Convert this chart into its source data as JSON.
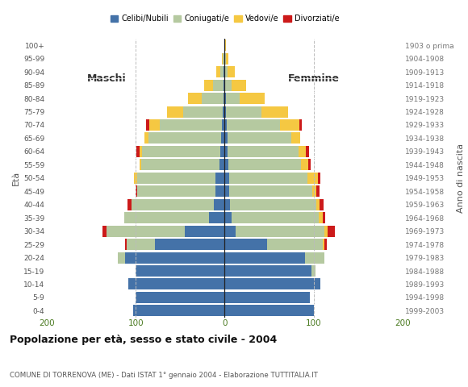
{
  "age_groups": [
    "0-4",
    "5-9",
    "10-14",
    "15-19",
    "20-24",
    "25-29",
    "30-34",
    "35-39",
    "40-44",
    "45-49",
    "50-54",
    "55-59",
    "60-64",
    "65-69",
    "70-74",
    "75-79",
    "80-84",
    "85-89",
    "90-94",
    "95-99",
    "100+"
  ],
  "birth_years": [
    "1999-2003",
    "1994-1998",
    "1989-1993",
    "1984-1988",
    "1979-1983",
    "1974-1978",
    "1969-1973",
    "1964-1968",
    "1959-1963",
    "1954-1958",
    "1949-1953",
    "1944-1948",
    "1939-1943",
    "1934-1938",
    "1929-1933",
    "1924-1928",
    "1919-1923",
    "1914-1918",
    "1909-1913",
    "1904-1908",
    "1903 o prima"
  ],
  "colors": {
    "celibi": "#4472a8",
    "coniugati": "#b5c9a0",
    "vedovi": "#f5c842",
    "divorziati": "#cc1a1a"
  },
  "maschi": {
    "celibi": [
      103,
      100,
      108,
      100,
      112,
      78,
      45,
      18,
      12,
      10,
      10,
      6,
      5,
      4,
      3,
      2,
      1,
      1,
      1,
      0,
      0
    ],
    "coniugati": [
      0,
      0,
      0,
      0,
      8,
      32,
      88,
      95,
      93,
      88,
      88,
      88,
      88,
      82,
      70,
      45,
      25,
      12,
      4,
      2,
      0
    ],
    "vedovi": [
      0,
      0,
      0,
      0,
      0,
      0,
      0,
      0,
      0,
      0,
      4,
      2,
      3,
      4,
      12,
      18,
      15,
      10,
      4,
      1,
      0
    ],
    "divorziati": [
      0,
      0,
      0,
      0,
      0,
      2,
      4,
      0,
      4,
      2,
      0,
      0,
      3,
      0,
      3,
      0,
      0,
      0,
      0,
      0,
      0
    ]
  },
  "femmine": {
    "nubili": [
      100,
      96,
      108,
      98,
      90,
      48,
      12,
      8,
      6,
      5,
      5,
      4,
      3,
      3,
      2,
      1,
      1,
      0,
      0,
      0,
      0
    ],
    "coniugate": [
      0,
      0,
      0,
      4,
      22,
      62,
      100,
      98,
      97,
      94,
      88,
      82,
      80,
      72,
      60,
      40,
      16,
      8,
      3,
      1,
      0
    ],
    "vedove": [
      0,
      0,
      0,
      0,
      0,
      2,
      4,
      4,
      4,
      4,
      12,
      8,
      8,
      10,
      22,
      30,
      28,
      16,
      8,
      3,
      1
    ],
    "divorziate": [
      0,
      0,
      0,
      0,
      0,
      3,
      8,
      3,
      4,
      4,
      3,
      3,
      4,
      0,
      3,
      0,
      0,
      0,
      0,
      0,
      0
    ]
  },
  "title": "Popolazione per età, sesso e stato civile - 2004",
  "subtitle": "COMUNE DI TORRENOVA (ME) - Dati ISTAT 1° gennaio 2004 - Elaborazione TUTTITALIA.IT",
  "maschi_label": "Maschi",
  "femmine_label": "Femmine",
  "eta_label": "Età",
  "anno_label": "Anno di nascita",
  "xlim": 200,
  "legend_labels": [
    "Celibi/Nubili",
    "Coniugati/e",
    "Vedovi/e",
    "Divorziati/e"
  ],
  "bg_color": "#ffffff",
  "grid_color": "#bbbbbb",
  "bar_height": 0.85
}
